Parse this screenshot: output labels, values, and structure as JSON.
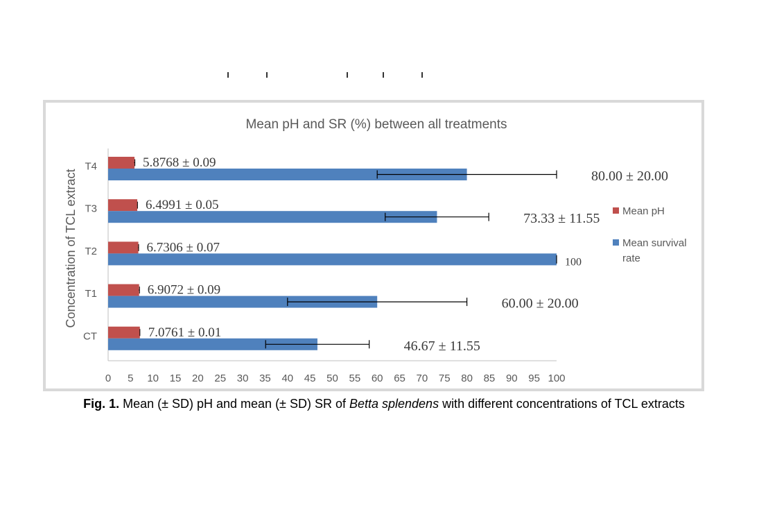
{
  "chart_data": {
    "type": "bar",
    "orientation": "horizontal",
    "title": "Mean pH and SR (%) between all treatments",
    "xlabel": "",
    "ylabel": "Concentration of TCL extract",
    "categories": [
      "CT",
      "T1",
      "T2",
      "T3",
      "T4"
    ],
    "xlim": [
      0,
      100
    ],
    "xticks": [
      0,
      5,
      10,
      15,
      20,
      25,
      30,
      35,
      40,
      45,
      50,
      55,
      60,
      65,
      70,
      75,
      80,
      85,
      90,
      95,
      100
    ],
    "grid": false,
    "legend_position": "right",
    "series": [
      {
        "name": "Mean pH",
        "color": "#c0504d",
        "values": [
          7.0761,
          6.9072,
          6.7306,
          6.4991,
          5.8768
        ],
        "errors": [
          0.01,
          0.09,
          0.07,
          0.05,
          0.09
        ],
        "labels": [
          "7.0761 ± 0.01",
          "6.9072 ± 0.09",
          "6.7306 ± 0.07",
          "6.4991 ± 0.05",
          "5.8768 ± 0.09"
        ]
      },
      {
        "name": "Mean survival rate",
        "color": "#4f81bd",
        "values": [
          46.67,
          60.0,
          100,
          73.33,
          80.0
        ],
        "errors": [
          11.55,
          20.0,
          0,
          11.55,
          20.0
        ],
        "labels": [
          "46.67 ± 11.55",
          "60.00 ± 20.00",
          "100",
          "73.33 ± 11.55",
          "80.00 ± 20.00"
        ]
      }
    ]
  },
  "caption": {
    "fig_label": "Fig. 1.",
    "text_before": " Mean (± SD) pH and mean (± SD) SR of ",
    "species": "Betta splendens",
    "text_after": " with different concentrations of TCL extracts"
  }
}
